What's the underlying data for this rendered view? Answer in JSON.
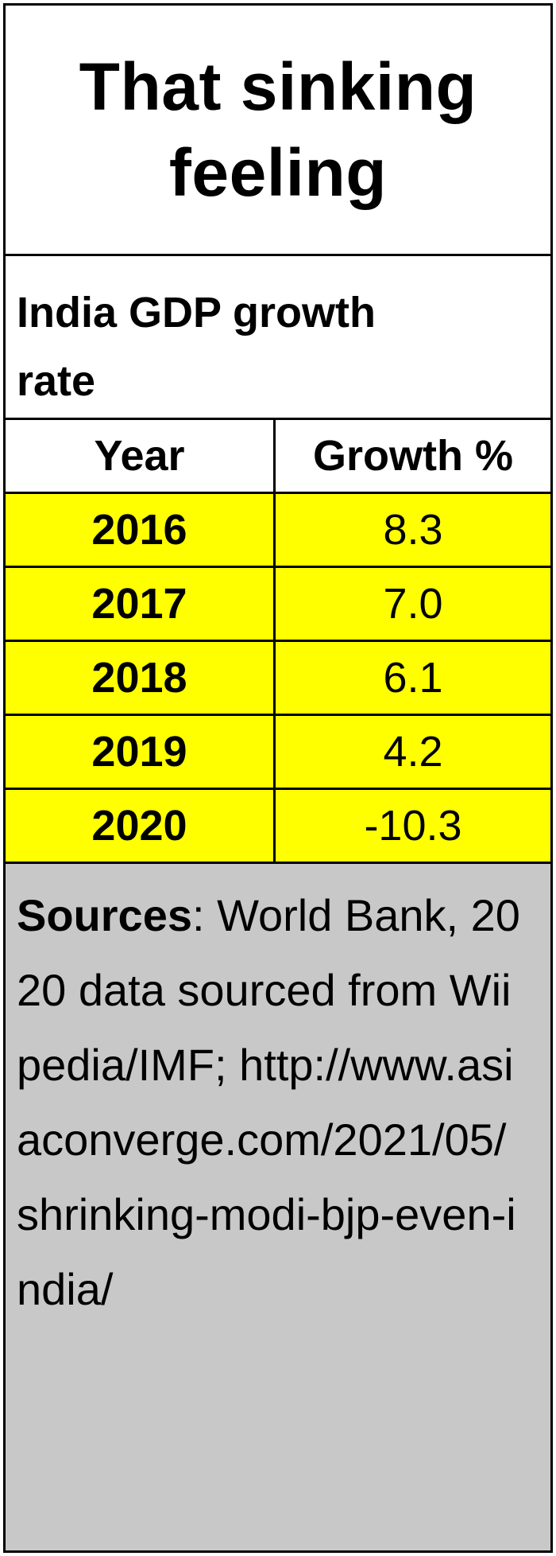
{
  "title": "That sinking feeling",
  "subtitle": "India GDP growth rate",
  "table": {
    "headers": [
      "Year",
      "Growth %"
    ],
    "rows": [
      {
        "year": "2016",
        "growth": "8.3"
      },
      {
        "year": "2017",
        "growth": "7.0"
      },
      {
        "year": "2018",
        "growth": "6.1"
      },
      {
        "year": "2019",
        "growth": "4.2"
      },
      {
        "year": "2020",
        "growth": "-10.3"
      }
    ]
  },
  "sources": {
    "label": "Sources",
    "text": ": World Bank,  2020 data sourced from Wiipedia/IMF; http://www.asiaconverge.com/2021/05/shrinking-modi-bjp-even-india/"
  },
  "colors": {
    "highlight": "#ffff00",
    "sources_background": "#c8c8c8",
    "border": "#000000"
  },
  "chart_data": {
    "type": "table",
    "title": "That sinking feeling",
    "subtitle": "India GDP growth rate",
    "columns": [
      "Year",
      "Growth %"
    ],
    "categories": [
      "2016",
      "2017",
      "2018",
      "2019",
      "2020"
    ],
    "values": [
      8.3,
      7.0,
      6.1,
      4.2,
      -10.3
    ]
  }
}
